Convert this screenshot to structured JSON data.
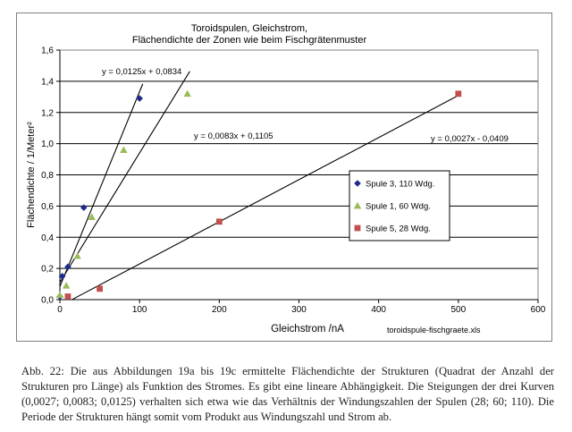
{
  "chart_data": {
    "type": "scatter",
    "title_lines": [
      "Toroidspulen, Gleichstrom,",
      "Flächendichte der Zonen wie beim Fischgrätenmuster"
    ],
    "xlabel": "Gleichstrom /nA",
    "ylabel": "Flächendichte  / 1/Meter²",
    "xlim": [
      0,
      600
    ],
    "ylim": [
      0,
      1.6
    ],
    "xticks": [
      0,
      100,
      200,
      300,
      400,
      500,
      600
    ],
    "xtick_labels": [
      "0",
      "100",
      "200",
      "300",
      "400",
      "500",
      "600"
    ],
    "yticks": [
      0,
      0.2,
      0.4,
      0.6,
      0.8,
      1.0,
      1.2,
      1.4,
      1.6
    ],
    "ytick_labels": [
      "0,0",
      "0,2",
      "0,4",
      "0,6",
      "0,8",
      "1,0",
      "1,2",
      "1,4",
      "1,6"
    ],
    "grid": "horizontal",
    "legend_position": "right",
    "source_file": "toroidspule-fischgraete.xls",
    "series": [
      {
        "name": "Spule 3,  110 Wdg.",
        "marker": "diamond",
        "color": "#1f2a8c",
        "x": [
          0,
          3,
          10,
          30,
          100
        ],
        "y": [
          0.02,
          0.15,
          0.21,
          0.59,
          1.29
        ],
        "trendline": {
          "slope": 0.0125,
          "intercept": 0.0834,
          "x_range": [
            0,
            100
          ],
          "label": "y = 0,0125x + 0,0834"
        }
      },
      {
        "name": "Spule 1,  60 Wdg.",
        "marker": "triangle",
        "color": "#9bbb59",
        "x": [
          0,
          8,
          22,
          40,
          80,
          160
        ],
        "y": [
          0.03,
          0.09,
          0.28,
          0.53,
          0.96,
          1.32
        ],
        "trendline": {
          "slope": 0.0083,
          "intercept": 0.1105,
          "x_range": [
            0,
            160
          ],
          "label": "y = 0,0083x + 0,1105"
        }
      },
      {
        "name": "Spule 5, 28 Wdg.",
        "marker": "square",
        "color": "#c0504d",
        "x": [
          10,
          50,
          200,
          500
        ],
        "y": [
          0.02,
          0.07,
          0.5,
          1.32
        ],
        "trendline": {
          "slope": 0.0027,
          "intercept": -0.0409,
          "x_range": [
            15,
            500
          ],
          "label": "y = 0,0027x - 0,0409"
        }
      }
    ]
  },
  "caption": "Abb. 22: Die aus Abbildungen 19a bis 19c ermittelte Flächendichte der Strukturen (Quadrat der Anzahl der Strukturen pro Länge) als Funktion des Stromes. Es gibt eine lineare Abhängigkeit. Die Steigungen der drei Kurven (0,0027; 0,0083;  0,0125) verhalten sich etwa wie das Verhältnis der Windungszahlen der Spulen (28; 60; 110). Die Periode der Strukturen hängt somit vom Produkt aus Windungszahl und Strom ab."
}
